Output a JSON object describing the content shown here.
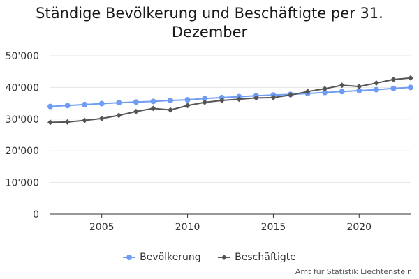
{
  "title_lines": [
    "Ständige Bevölkerung und Beschäftigte per 31.",
    "Dezember"
  ],
  "source": "Amt für Statistik Liechtenstein",
  "colors": {
    "bevoelkerung": "#6f9cf5",
    "beschaeftigte": "#555555",
    "grid": "#e6e6e6",
    "axis": "#333333"
  },
  "chart_data": {
    "type": "line",
    "title": "Ständige Bevölkerung und Beschäftigte per 31. Dezember",
    "xlabel": "",
    "ylabel": "",
    "x": [
      2002,
      2003,
      2004,
      2005,
      2006,
      2007,
      2008,
      2009,
      2010,
      2011,
      2012,
      2013,
      2014,
      2015,
      2016,
      2017,
      2018,
      2019,
      2020,
      2021,
      2022,
      2023
    ],
    "xlim": [
      2002,
      2023
    ],
    "ylim": [
      0,
      50000
    ],
    "x_ticks": [
      2005,
      2010,
      2015,
      2020
    ],
    "x_tick_labels": [
      "2005",
      "2010",
      "2015",
      "2020"
    ],
    "y_ticks": [
      0,
      10000,
      20000,
      30000,
      40000,
      50000
    ],
    "y_tick_labels": [
      "0",
      "10'000",
      "20'000",
      "30'000",
      "40'000",
      "50'000"
    ],
    "grid": "horizontal",
    "legend": "bottom",
    "series": [
      {
        "name": "Bevölkerung",
        "marker": "circle",
        "values": [
          34000,
          34300,
          34600,
          34900,
          35200,
          35400,
          35600,
          35900,
          36100,
          36500,
          36800,
          37100,
          37400,
          37600,
          37800,
          38100,
          38400,
          38700,
          39000,
          39300,
          39700,
          40000
        ]
      },
      {
        "name": "Beschäftigte",
        "marker": "diamond",
        "values": [
          29000,
          29100,
          29600,
          30200,
          31200,
          32400,
          33400,
          32900,
          34300,
          35300,
          35900,
          36300,
          36700,
          36800,
          37600,
          38700,
          39600,
          40700,
          40300,
          41400,
          42500,
          43000
        ]
      }
    ]
  }
}
